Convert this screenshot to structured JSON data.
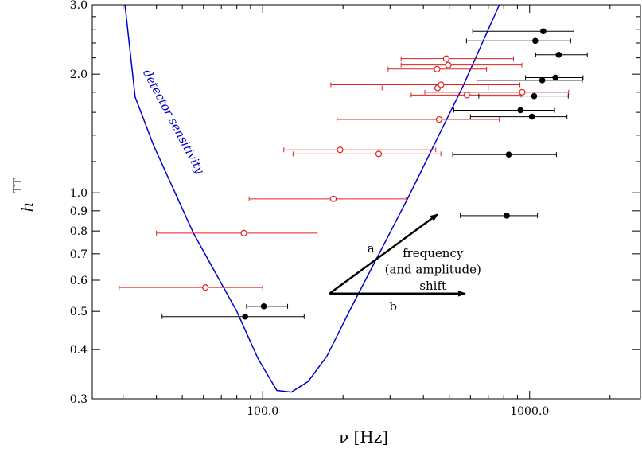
{
  "chart_data": {
    "type": "scatter",
    "title": "",
    "xlabel": "ν [Hz]",
    "ylabel": "h",
    "ylabel_superscript": "TT",
    "x_scale": "log",
    "y_scale": "log",
    "xlim": [
      23,
      2600
    ],
    "ylim": [
      0.3,
      3.0
    ],
    "x_ticks": [
      100,
      1000
    ],
    "x_tick_labels": [
      "100.0",
      "1000.0"
    ],
    "y_ticks": [
      0.3,
      0.4,
      0.5,
      0.6,
      0.7,
      0.8,
      0.9,
      1.0,
      2.0,
      3.0
    ],
    "y_tick_labels": [
      "0.3",
      "0.4",
      "0.5",
      "0.6",
      "0.7",
      "0.8",
      "0.9",
      "1.0",
      "2.0",
      "3.0"
    ],
    "grid": false,
    "legend": "none",
    "colors": {
      "curve": "#0000cc",
      "open_points": "#e02020",
      "filled_points": "#000000"
    },
    "series": [
      {
        "marker": "open-circle",
        "color": "#e02020",
        "points": [
          {
            "x": 61,
            "y": 0.575,
            "xerr_lo": 29,
            "xerr_hi": 100
          },
          {
            "x": 85,
            "y": 0.79,
            "xerr_lo": 40,
            "xerr_hi": 160
          },
          {
            "x": 184,
            "y": 0.965,
            "xerr_lo": 89,
            "xerr_hi": 345
          },
          {
            "x": 195,
            "y": 1.285,
            "xerr_lo": 120,
            "xerr_hi": 445
          },
          {
            "x": 272,
            "y": 1.255,
            "xerr_lo": 130,
            "xerr_hi": 465
          },
          {
            "x": 458,
            "y": 1.535,
            "xerr_lo": 190,
            "xerr_hi": 770
          },
          {
            "x": 582,
            "y": 1.77,
            "xerr_lo": 360,
            "xerr_hi": 930
          },
          {
            "x": 452,
            "y": 1.845,
            "xerr_lo": 280,
            "xerr_hi": 700
          },
          {
            "x": 466,
            "y": 1.88,
            "xerr_lo": 180,
            "xerr_hi": 920
          },
          {
            "x": 938,
            "y": 1.8,
            "xerr_lo": 405,
            "xerr_hi": 1400
          },
          {
            "x": 450,
            "y": 2.06,
            "xerr_lo": 295,
            "xerr_hi": 690
          },
          {
            "x": 496,
            "y": 2.11,
            "xerr_lo": 330,
            "xerr_hi": 935
          },
          {
            "x": 487,
            "y": 2.19,
            "xerr_lo": 330,
            "xerr_hi": 870
          }
        ]
      },
      {
        "marker": "filled-circle",
        "color": "#000000",
        "points": [
          {
            "x": 86,
            "y": 0.485,
            "xerr_lo": 42,
            "xerr_hi": 143
          },
          {
            "x": 101,
            "y": 0.515,
            "xerr_lo": 87,
            "xerr_hi": 124
          },
          {
            "x": 821,
            "y": 0.875,
            "xerr_lo": 550,
            "xerr_hi": 1070
          },
          {
            "x": 835,
            "y": 1.25,
            "xerr_lo": 515,
            "xerr_hi": 1260
          },
          {
            "x": 1020,
            "y": 1.56,
            "xerr_lo": 600,
            "xerr_hi": 1380
          },
          {
            "x": 924,
            "y": 1.62,
            "xerr_lo": 520,
            "xerr_hi": 1240
          },
          {
            "x": 1040,
            "y": 1.76,
            "xerr_lo": 645,
            "xerr_hi": 1395
          },
          {
            "x": 1115,
            "y": 1.93,
            "xerr_lo": 635,
            "xerr_hi": 1575
          },
          {
            "x": 1250,
            "y": 1.96,
            "xerr_lo": 965,
            "xerr_hi": 1585
          },
          {
            "x": 1285,
            "y": 2.24,
            "xerr_lo": 1055,
            "xerr_hi": 1645
          },
          {
            "x": 1050,
            "y": 2.43,
            "xerr_lo": 580,
            "xerr_hi": 1425
          },
          {
            "x": 1125,
            "y": 2.57,
            "xerr_lo": 612,
            "xerr_hi": 1465
          }
        ]
      }
    ],
    "curve": {
      "label": "detector sensitivity",
      "x": [
        30.5,
        33.3,
        39,
        55,
        80,
        96,
        113,
        128,
        148,
        174,
        211,
        350,
        560,
        770
      ],
      "y": [
        3.0,
        1.75,
        1.32,
        0.79,
        0.5,
        0.38,
        0.315,
        0.312,
        0.332,
        0.385,
        0.5,
        0.97,
        1.85,
        3.0
      ]
    },
    "annotations": {
      "arrow_a": {
        "label": "a",
        "from": [
          178,
          0.555
        ],
        "to": [
          450,
          0.88
        ]
      },
      "arrow_b": {
        "label": "b",
        "from": [
          178,
          0.555
        ],
        "to": [
          570,
          0.555
        ]
      },
      "text_lines": [
        "frequency",
        "(and amplitude)",
        "shift"
      ]
    }
  }
}
